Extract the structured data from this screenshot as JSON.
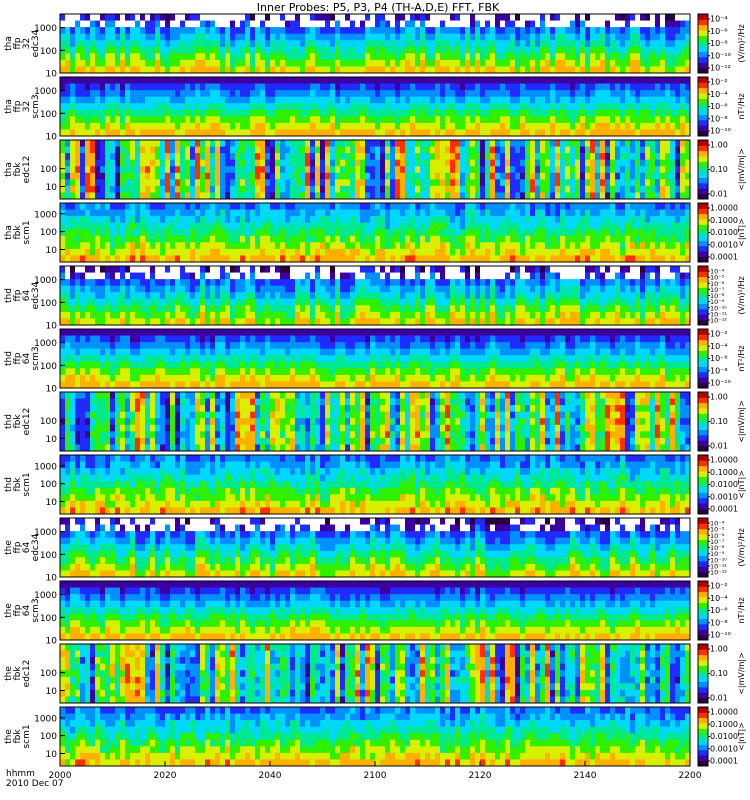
{
  "chart_data": {
    "type": "heatmap",
    "title": "Inner Probes: P5, P3, P4 (TH-A,D,E) FFT, FBK",
    "x_axis": {
      "label_row1": "hhmm",
      "label_row2": "2010 Dec 07",
      "ticks": [
        "2000",
        "2020",
        "2040",
        "2100",
        "2120",
        "2140",
        "2200"
      ],
      "range": [
        "2000",
        "2200"
      ]
    },
    "panels": [
      {
        "ylabel": [
          "tha",
          "ffp",
          "32",
          "edc34"
        ],
        "yticks": [
          "1000",
          "100",
          "10"
        ],
        "ylog": true,
        "yrange": [
          10,
          4000
        ],
        "clabel": "(V/m)²/Hz",
        "cticks": [
          "10⁻⁴",
          "10⁻⁶",
          "10⁻⁸",
          "10⁻¹⁰",
          "10⁻¹²"
        ],
        "style": "efield_spec"
      },
      {
        "ylabel": [
          "tha",
          "ffp",
          "32",
          "scm3"
        ],
        "yticks": [
          "1000",
          "100",
          "10"
        ],
        "ylog": true,
        "yrange": [
          10,
          4000
        ],
        "clabel": "nT²/Hz",
        "cticks": [
          "10⁻²",
          "10⁻⁴",
          "10⁻⁶",
          "10⁻⁸",
          "10⁻¹⁰"
        ],
        "style": "bfield_spec"
      },
      {
        "ylabel": [
          "tha",
          "fbk",
          "edc12"
        ],
        "yticks": [
          "100",
          "10"
        ],
        "ylog": true,
        "yrange": [
          2,
          4000
        ],
        "clabel": "<|mV/m|>",
        "cticks": [
          "1.00",
          "0.10",
          "0.01"
        ],
        "style": "efield_fbk"
      },
      {
        "ylabel": [
          "tha",
          "fbk",
          "scm1"
        ],
        "yticks": [
          "1000",
          "100",
          "10"
        ],
        "ylog": true,
        "yrange": [
          2,
          4000
        ],
        "clabel": "<|nT|>",
        "cticks": [
          "1.0000",
          "0.1000",
          "0.0100",
          "0.0010",
          "0.0001"
        ],
        "style": "bfield_fbk"
      },
      {
        "ylabel": [
          "thd",
          "ffp",
          "64",
          "edc34"
        ],
        "yticks": [
          "1000",
          "100",
          "10"
        ],
        "ylog": true,
        "yrange": [
          10,
          4000
        ],
        "clabel": "(V/m)²/Hz",
        "cticks": [
          "10⁻⁴",
          "10⁻⁵",
          "10⁻⁶",
          "10⁻⁷",
          "10⁻⁸",
          "10⁻⁹",
          "10⁻¹⁰",
          "10⁻¹¹",
          "10⁻¹²"
        ],
        "style": "efield_spec"
      },
      {
        "ylabel": [
          "thd",
          "ffp",
          "64",
          "scm3"
        ],
        "yticks": [
          "1000",
          "100",
          "10"
        ],
        "ylog": true,
        "yrange": [
          10,
          4000
        ],
        "clabel": "nT²/Hz",
        "cticks": [
          "10⁻²",
          "10⁻⁴",
          "10⁻⁶",
          "10⁻⁸",
          "10⁻¹⁰"
        ],
        "style": "bfield_spec"
      },
      {
        "ylabel": [
          "thd",
          "fbk",
          "edc12"
        ],
        "yticks": [
          "100",
          "10"
        ],
        "ylog": true,
        "yrange": [
          2,
          4000
        ],
        "clabel": "<|mV/m|>",
        "cticks": [
          "1.00",
          "0.10",
          "0.01"
        ],
        "style": "efield_fbk"
      },
      {
        "ylabel": [
          "thd",
          "fbk",
          "scm1"
        ],
        "yticks": [
          "1000",
          "100",
          "10"
        ],
        "ylog": true,
        "yrange": [
          2,
          4000
        ],
        "clabel": "<|nT|>",
        "cticks": [
          "1.0000",
          "0.1000",
          "0.0100",
          "0.0010",
          "0.0001"
        ],
        "style": "bfield_fbk"
      },
      {
        "ylabel": [
          "the",
          "ffp",
          "64",
          "edc34"
        ],
        "yticks": [
          "1000",
          "100",
          "10"
        ],
        "ylog": true,
        "yrange": [
          10,
          4000
        ],
        "clabel": "(V/m)²/Hz",
        "cticks": [
          "10⁻⁴",
          "10⁻⁵",
          "10⁻⁶",
          "10⁻⁷",
          "10⁻⁸",
          "10⁻⁹",
          "10⁻¹⁰",
          "10⁻¹¹",
          "10⁻¹²"
        ],
        "style": "efield_spec"
      },
      {
        "ylabel": [
          "the",
          "ffp",
          "64",
          "scm3"
        ],
        "yticks": [
          "1000",
          "100",
          "10"
        ],
        "ylog": true,
        "yrange": [
          10,
          4000
        ],
        "clabel": "nT²/Hz",
        "cticks": [
          "10⁻²",
          "10⁻⁴",
          "10⁻⁶",
          "10⁻⁸",
          "10⁻¹⁰"
        ],
        "style": "bfield_spec"
      },
      {
        "ylabel": [
          "the",
          "fbk",
          "edc12"
        ],
        "yticks": [
          "100",
          "10"
        ],
        "ylog": true,
        "yrange": [
          2,
          4000
        ],
        "clabel": "<|mV/m|>",
        "cticks": [
          "1.00",
          "0.10",
          "0.01"
        ],
        "style": "efield_fbk"
      },
      {
        "ylabel": [
          "the",
          "fbk",
          "scm1"
        ],
        "yticks": [
          "1000",
          "100",
          "10"
        ],
        "ylog": true,
        "yrange": [
          2,
          4000
        ],
        "clabel": "<|nT|>",
        "cticks": [
          "1.0000",
          "0.1000",
          "0.0100",
          "0.0010",
          "0.0001"
        ],
        "style": "bfield_fbk"
      }
    ],
    "colorscale": [
      "#2a0040",
      "#3b00a0",
      "#1f2bff",
      "#0090ff",
      "#00d8ff",
      "#00e890",
      "#30f000",
      "#d8f000",
      "#ffb000",
      "#ff3000",
      "#b00000"
    ]
  }
}
